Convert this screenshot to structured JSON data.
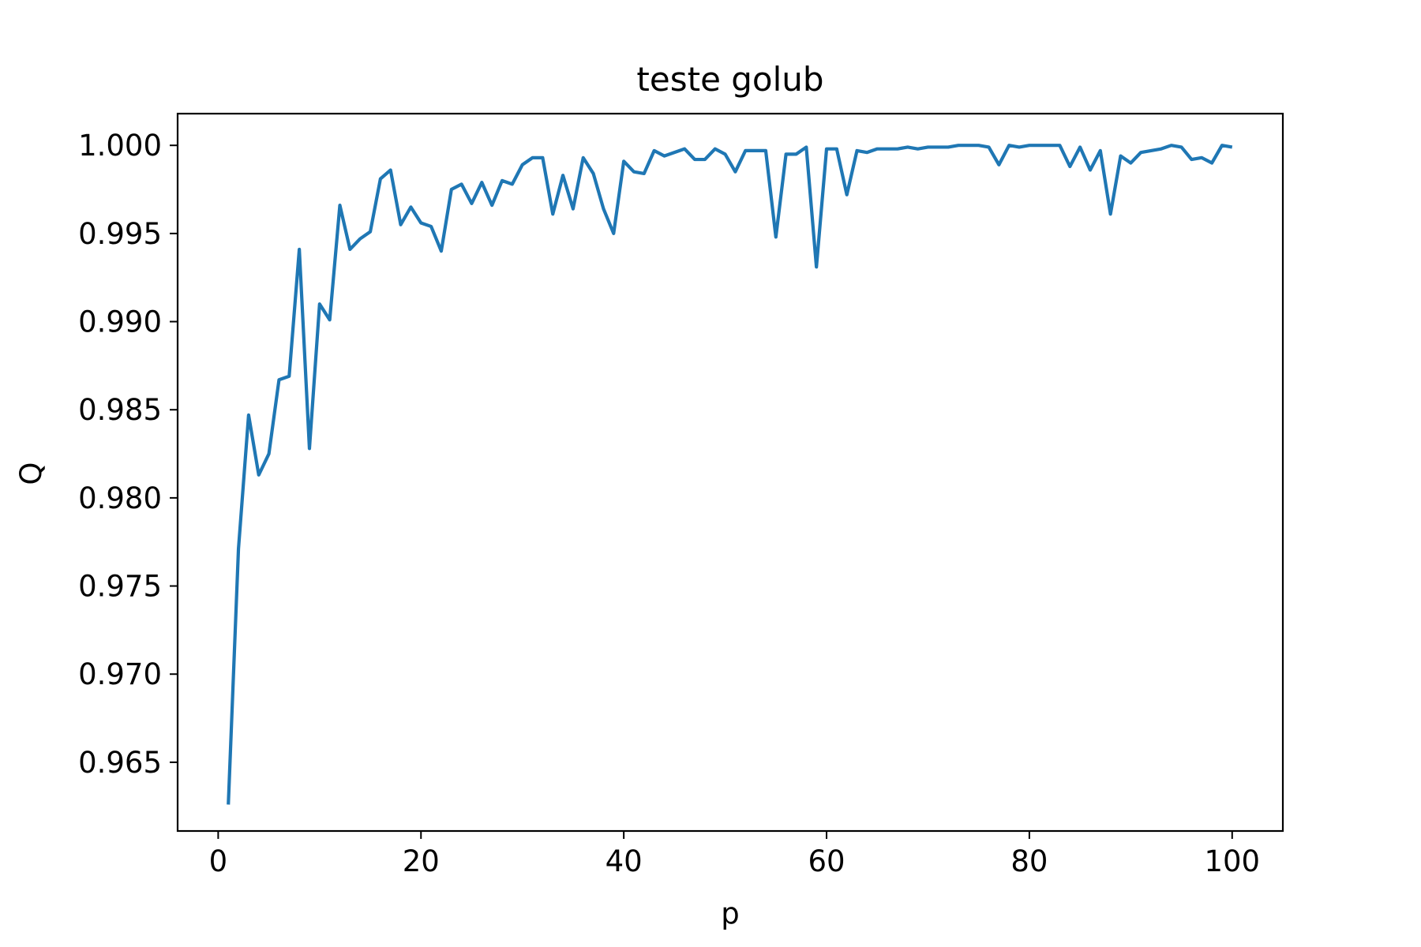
{
  "chart_data": {
    "type": "line",
    "title": "teste golub",
    "xlabel": "p",
    "ylabel": "Q",
    "xlim": [
      -4,
      105
    ],
    "ylim": [
      0.9611,
      1.0018
    ],
    "xticks": [
      0,
      20,
      40,
      60,
      80,
      100
    ],
    "xtick_labels": [
      "0",
      "20",
      "40",
      "60",
      "80",
      "100"
    ],
    "yticks": [
      0.965,
      0.97,
      0.975,
      0.98,
      0.985,
      0.99,
      0.995,
      1.0
    ],
    "ytick_labels": [
      "0.965",
      "0.970",
      "0.975",
      "0.980",
      "0.985",
      "0.990",
      "0.995",
      "1.000"
    ],
    "grid": false,
    "legend": false,
    "line_color": "#1f77b4",
    "series": [
      {
        "x": [
          1,
          2,
          3,
          4,
          5,
          6,
          7,
          8,
          9,
          10,
          11,
          12,
          13,
          14,
          15,
          16,
          17,
          18,
          19,
          20,
          21,
          22,
          23,
          24,
          25,
          26,
          27,
          28,
          29,
          30,
          31,
          32,
          33,
          34,
          35,
          36,
          37,
          38,
          39,
          40,
          41,
          42,
          43,
          44,
          45,
          46,
          47,
          48,
          49,
          50,
          51,
          52,
          53,
          54,
          55,
          56,
          57,
          58,
          59,
          60,
          61,
          62,
          63,
          64,
          65,
          66,
          67,
          68,
          69,
          70,
          71,
          72,
          73,
          74,
          75,
          76,
          77,
          78,
          79,
          80,
          81,
          82,
          83,
          84,
          85,
          86,
          87,
          88,
          89,
          90,
          91,
          92,
          93,
          94,
          95,
          96,
          97,
          98,
          99,
          100
        ],
        "y": [
          0.9626,
          0.9771,
          0.9847,
          0.9813,
          0.9825,
          0.9867,
          0.9869,
          0.9941,
          0.9828,
          0.991,
          0.9901,
          0.9966,
          0.9941,
          0.9947,
          0.9951,
          0.9981,
          0.9986,
          0.9955,
          0.9965,
          0.9956,
          0.9954,
          0.994,
          0.9975,
          0.9978,
          0.9967,
          0.9979,
          0.9966,
          0.998,
          0.9978,
          0.9989,
          0.9993,
          0.9993,
          0.9961,
          0.9983,
          0.9964,
          0.9993,
          0.9984,
          0.9964,
          0.995,
          0.9991,
          0.9985,
          0.9984,
          0.9997,
          0.9994,
          0.9996,
          0.9998,
          0.9992,
          0.9992,
          0.9998,
          0.9995,
          0.9985,
          0.9997,
          0.9997,
          0.9997,
          0.9948,
          0.9995,
          0.9995,
          0.9999,
          0.9931,
          0.9998,
          0.9998,
          0.9972,
          0.9997,
          0.9996,
          0.9998,
          0.9998,
          0.9998,
          0.9999,
          0.9998,
          0.9999,
          0.9999,
          0.9999,
          1.0,
          1.0,
          1.0,
          0.9999,
          0.9989,
          1.0,
          0.9999,
          1.0,
          1.0,
          1.0,
          1.0,
          0.9988,
          0.9999,
          0.9986,
          0.9997,
          0.9961,
          0.9994,
          0.999,
          0.9996,
          0.9997,
          0.9998,
          1.0,
          0.9999,
          0.9992,
          0.9993,
          0.999,
          1.0,
          0.9999
        ]
      }
    ]
  }
}
